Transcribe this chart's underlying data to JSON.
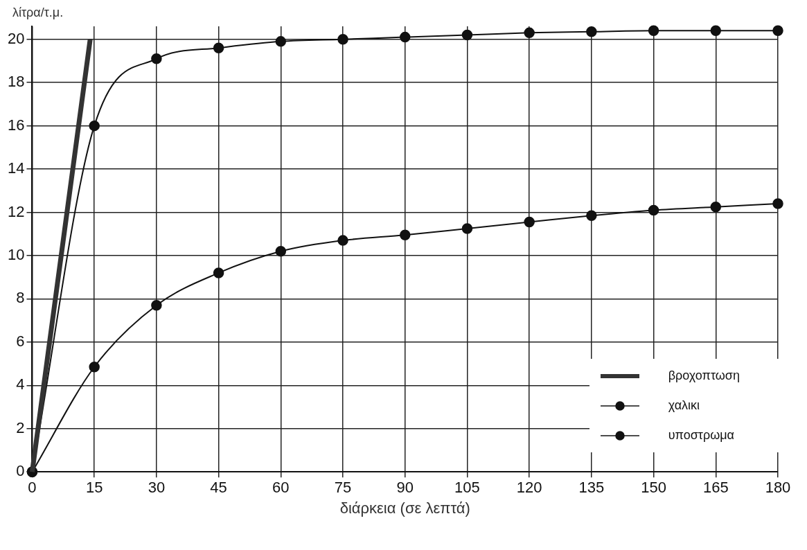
{
  "chart_data": {
    "type": "line",
    "xlabel": "διάρκεια (σε λεπτά)",
    "ylabel": "λίτρα/τ.μ.",
    "xlim": [
      0,
      180
    ],
    "xticks": [
      0,
      15,
      30,
      45,
      60,
      75,
      90,
      105,
      120,
      135,
      150,
      165,
      180
    ],
    "ylim": [
      0,
      20.6
    ],
    "yticks": [
      0,
      2,
      4,
      6,
      8,
      10,
      12,
      14,
      16,
      18,
      20
    ],
    "grid": true,
    "legend": "bottom right",
    "marker": "circle",
    "series": [
      {
        "name": "βροχοπτωση",
        "color": "#333333",
        "x": [
          0,
          14
        ],
        "values": [
          0,
          20
        ],
        "marker": "none"
      },
      {
        "name": "χαλικι",
        "color": "#111111",
        "x": [
          0,
          15,
          30,
          45,
          60,
          75,
          90,
          105,
          120,
          135,
          150,
          165,
          180
        ],
        "values": [
          0,
          16,
          19.1,
          19.6,
          19.9,
          20,
          20.1,
          20.2,
          20.3,
          20.35,
          20.4,
          20.4,
          20.4
        ]
      },
      {
        "name": "υποστρωμα",
        "color": "#111111",
        "x": [
          0,
          15,
          30,
          45,
          60,
          75,
          90,
          105,
          120,
          135,
          150,
          165,
          180
        ],
        "values": [
          0,
          4.85,
          7.7,
          9.2,
          10.2,
          10.7,
          10.95,
          11.25,
          11.55,
          11.85,
          12.1,
          12.25,
          12.4
        ]
      }
    ]
  }
}
